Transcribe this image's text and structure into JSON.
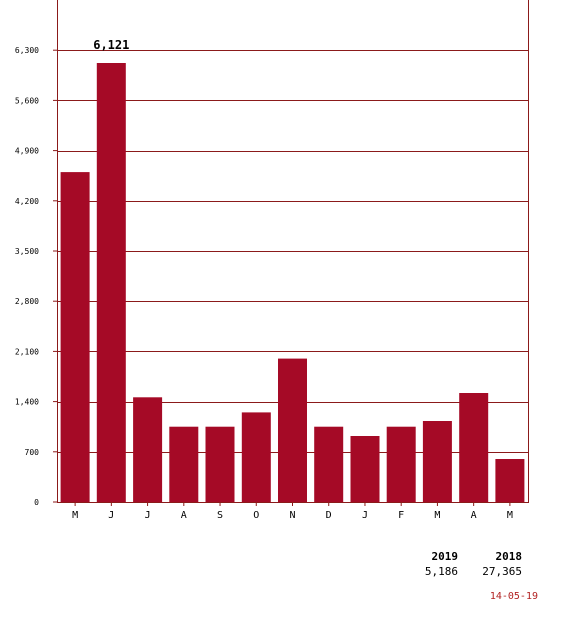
{
  "colors": {
    "bar": "#a50a26",
    "axis": "#8b1a1a",
    "grid": "#8b1a1a",
    "tick_text": "#000000",
    "date": "#b22222"
  },
  "chart_data": {
    "type": "bar",
    "categories": [
      "M",
      "J",
      "J",
      "A",
      "S",
      "O",
      "N",
      "D",
      "J",
      "F",
      "M",
      "A",
      "M"
    ],
    "values": [
      4600,
      6121,
      1460,
      1050,
      1050,
      1250,
      2000,
      1050,
      920,
      1050,
      1130,
      1520,
      600
    ],
    "yticks": [
      0,
      700,
      1400,
      2100,
      2800,
      3500,
      4200,
      4900,
      5600,
      6300
    ],
    "ytick_labels": [
      "0",
      "700",
      "1,400",
      "2,100",
      "2,800",
      "3,500",
      "4,200",
      "4,900",
      "5,600",
      "6,300"
    ],
    "ylim": [
      0,
      7000
    ],
    "max_label": "6,121",
    "max_label_index": 1,
    "grid": true,
    "title": "",
    "xlabel": "",
    "ylabel": ""
  },
  "summary": {
    "items": [
      {
        "year": "2019",
        "value": "5,186"
      },
      {
        "year": "2018",
        "value": "27,365"
      }
    ]
  },
  "date_stamp": "14-05-19"
}
